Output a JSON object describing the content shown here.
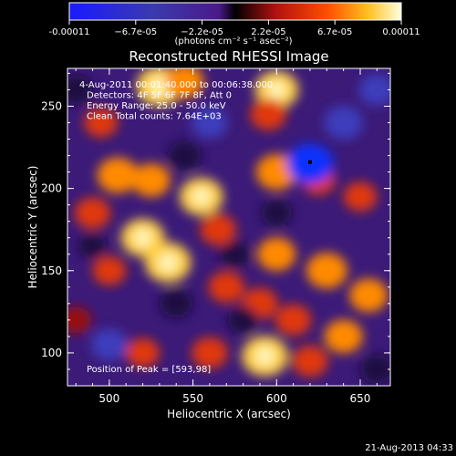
{
  "chart_data": {
    "type": "heatmap",
    "title": "Reconstructed RHESSI Image",
    "xlabel": "Heliocentric X (arcsec)",
    "ylabel": "Heliocentric Y (arcsec)",
    "xlim": [
      475,
      668
    ],
    "ylim": [
      80,
      273
    ],
    "xticks": [
      "500",
      "550",
      "600",
      "650"
    ],
    "yticks": [
      "100",
      "150",
      "200",
      "250"
    ],
    "colorbar": {
      "min": -0.00011,
      "max": 0.00011,
      "ticks": [
        "-0.00011",
        "−6.7e-05",
        "−2.2e-05",
        "2.2e-05",
        "6.7e-05",
        "0.00011"
      ],
      "units": "(photons cm⁻² s⁻¹ asec⁻²)"
    },
    "annotations": [
      "4-Aug-2011 00:01:40.000 to 00:06:38.000",
      "Detectors: 4F 5F 6F 7F 8F, Att 0",
      "Energy Range: 25.0 - 50.0 keV",
      "Clean    Total counts: 7.64E+03"
    ],
    "peak_label": "Position of Peak = [593,98]",
    "peak": [
      593,
      98
    ],
    "blobs": [
      {
        "x": 530,
        "y": 262,
        "v": 1.0
      },
      {
        "x": 545,
        "y": 265,
        "v": 0.7
      },
      {
        "x": 600,
        "y": 260,
        "v": 0.9
      },
      {
        "x": 595,
        "y": 245,
        "v": 0.6
      },
      {
        "x": 495,
        "y": 240,
        "v": 0.5
      },
      {
        "x": 505,
        "y": 208,
        "v": 0.8
      },
      {
        "x": 490,
        "y": 185,
        "v": 0.6
      },
      {
        "x": 525,
        "y": 205,
        "v": 0.7
      },
      {
        "x": 555,
        "y": 195,
        "v": 0.9
      },
      {
        "x": 565,
        "y": 175,
        "v": 0.6
      },
      {
        "x": 600,
        "y": 210,
        "v": 0.8
      },
      {
        "x": 625,
        "y": 205,
        "v": 0.5
      },
      {
        "x": 650,
        "y": 195,
        "v": 0.5
      },
      {
        "x": 520,
        "y": 170,
        "v": 0.9
      },
      {
        "x": 535,
        "y": 155,
        "v": 1.0
      },
      {
        "x": 500,
        "y": 150,
        "v": 0.5
      },
      {
        "x": 570,
        "y": 140,
        "v": 0.6
      },
      {
        "x": 600,
        "y": 160,
        "v": 0.7
      },
      {
        "x": 630,
        "y": 150,
        "v": 0.8
      },
      {
        "x": 655,
        "y": 135,
        "v": 0.7
      },
      {
        "x": 590,
        "y": 130,
        "v": 0.6
      },
      {
        "x": 520,
        "y": 100,
        "v": 0.5
      },
      {
        "x": 560,
        "y": 100,
        "v": 0.6
      },
      {
        "x": 593,
        "y": 98,
        "v": 1.0
      },
      {
        "x": 620,
        "y": 95,
        "v": 0.6
      },
      {
        "x": 640,
        "y": 110,
        "v": 0.7
      },
      {
        "x": 610,
        "y": 120,
        "v": 0.6
      },
      {
        "x": 480,
        "y": 120,
        "v": 0.4
      },
      {
        "x": 500,
        "y": 105,
        "v": -0.6
      },
      {
        "x": 620,
        "y": 215,
        "v": -1.0
      },
      {
        "x": 640,
        "y": 240,
        "v": -0.7
      },
      {
        "x": 560,
        "y": 240,
        "v": -0.6
      },
      {
        "x": 545,
        "y": 220,
        "v": -0.5
      },
      {
        "x": 480,
        "y": 260,
        "v": -0.5
      },
      {
        "x": 580,
        "y": 120,
        "v": -0.4
      },
      {
        "x": 540,
        "y": 130,
        "v": -0.5
      },
      {
        "x": 660,
        "y": 260,
        "v": -0.6
      },
      {
        "x": 660,
        "y": 90,
        "v": -0.5
      },
      {
        "x": 490,
        "y": 165,
        "v": -0.3
      },
      {
        "x": 575,
        "y": 160,
        "v": -0.4
      },
      {
        "x": 600,
        "y": 185,
        "v": -0.4
      }
    ]
  },
  "footer": {
    "date": "21-Aug-2013 04:33"
  }
}
